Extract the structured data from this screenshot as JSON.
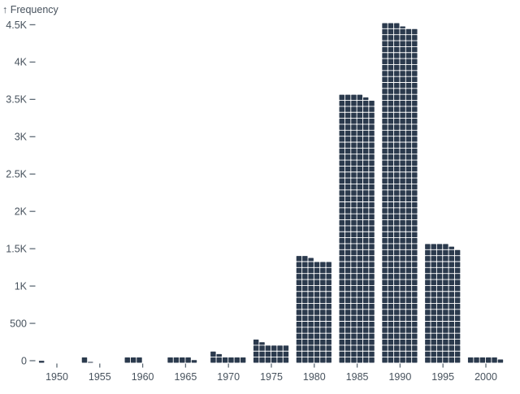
{
  "chart_data": {
    "type": "bar",
    "variant": "waffle-histogram",
    "title": "",
    "ylabel": "↑ Frequency",
    "xlabel": "",
    "categories": [
      1950,
      1955,
      1960,
      1965,
      1970,
      1975,
      1980,
      1985,
      1990,
      1995,
      2000
    ],
    "values": [
      5,
      15,
      40,
      60,
      100,
      260,
      1395,
      3580,
      4525,
      1580,
      75
    ],
    "x_tick_labels": [
      "1950",
      "1955",
      "1960",
      "1965",
      "1970",
      "1975",
      "1980",
      "1985",
      "1990",
      "1995",
      "2000"
    ],
    "y_ticks": [
      {
        "value": 0,
        "label": "0"
      },
      {
        "value": 500,
        "label": "500"
      },
      {
        "value": 1000,
        "label": "1K"
      },
      {
        "value": 1500,
        "label": "1.5K"
      },
      {
        "value": 2000,
        "label": "2K"
      },
      {
        "value": 2500,
        "label": "2.5K"
      },
      {
        "value": 3000,
        "label": "3K"
      },
      {
        "value": 3500,
        "label": "3.5K"
      },
      {
        "value": 4000,
        "label": "4K"
      },
      {
        "value": 4500,
        "label": "4.5K"
      }
    ],
    "ylim": [
      0,
      4700
    ],
    "xlim": [
      1945,
      2004
    ],
    "grid": false,
    "legend": "none",
    "waffle": {
      "columns": 6,
      "units_per_cell": 13.3333
    },
    "colors": {
      "cell": "#2b3a4d",
      "axis_text": "#47525d",
      "tick_mark": "#5f6b76",
      "background": "#ffffff"
    }
  }
}
